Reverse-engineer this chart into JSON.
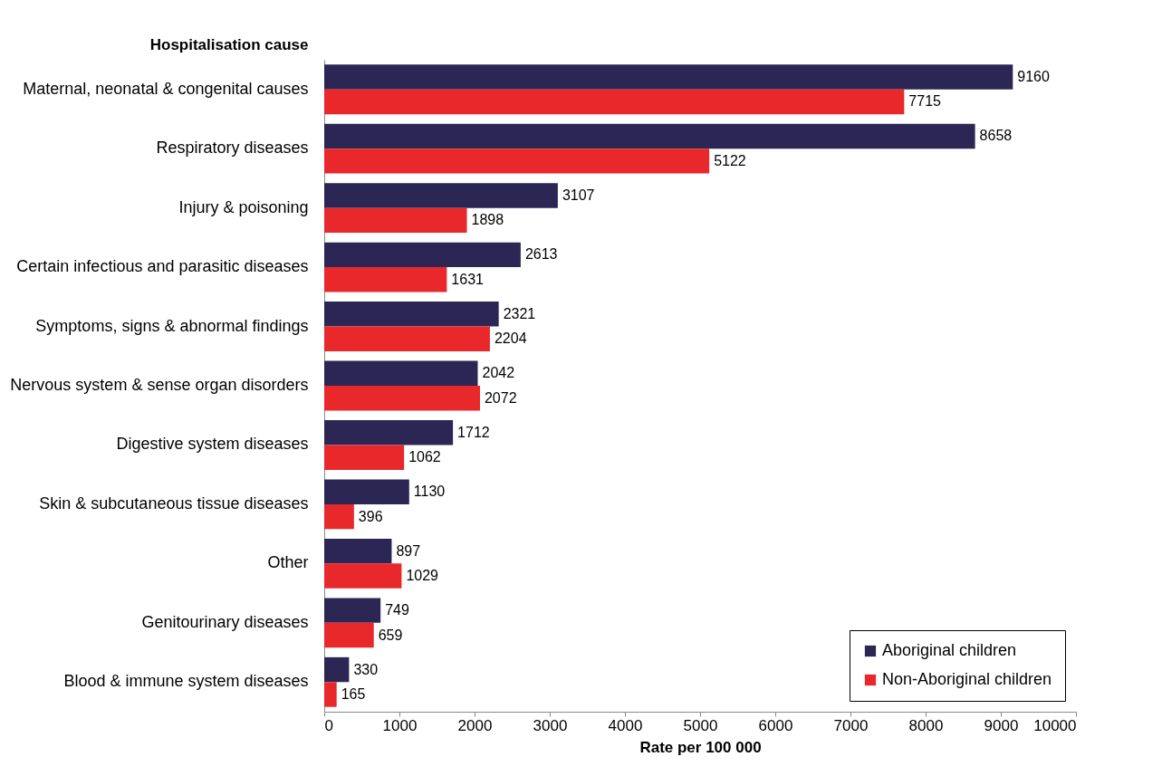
{
  "chart_data": {
    "type": "bar",
    "orientation": "horizontal",
    "xlabel": "Rate per 100 000",
    "ylabel": "Hospitalisation cause",
    "categories": [
      "Maternal, neonatal & congenital causes",
      "Respiratory diseases",
      "Injury & poisoning",
      "Certain infectious and parasitic diseases",
      "Symptoms, signs  & abnormal findings",
      "Nervous system & sense organ disorders",
      "Digestive system diseases",
      "Skin & subcutaneous tissue diseases",
      "Other",
      "Genitourinary diseases",
      "Blood & immune system diseases"
    ],
    "series": [
      {
        "name": "Aboriginal children",
        "color": "#2b2654",
        "values": [
          9160,
          8658,
          3107,
          2613,
          2321,
          2042,
          1712,
          1130,
          897,
          749,
          330
        ]
      },
      {
        "name": "Non-Aboriginal children",
        "color": "#e8282b",
        "values": [
          7715,
          5122,
          1898,
          1631,
          2204,
          2072,
          1062,
          396,
          1029,
          659,
          165
        ]
      }
    ],
    "xlim": [
      0,
      10000
    ],
    "xticks": [
      0,
      1000,
      2000,
      3000,
      4000,
      5000,
      6000,
      7000,
      8000,
      9000,
      10000
    ],
    "data_labels": true,
    "grid": false,
    "legend": "bottom right"
  }
}
